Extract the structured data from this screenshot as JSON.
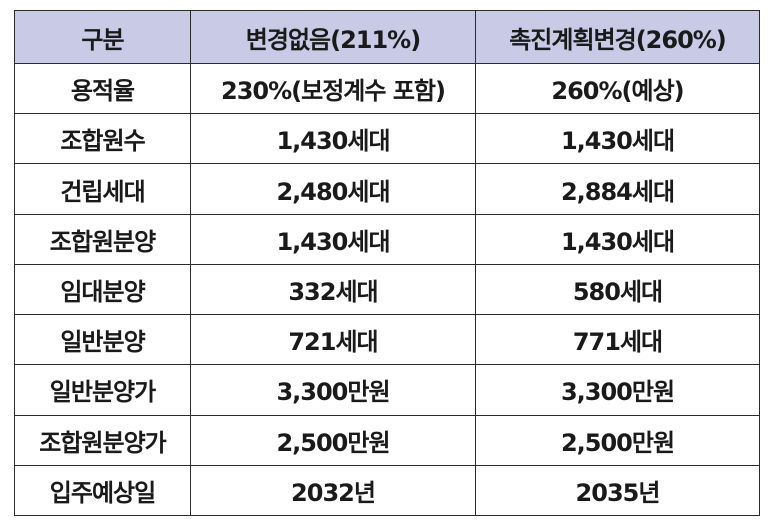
{
  "table": {
    "headers": [
      "구분",
      "변경없음(211%)",
      "촉진계획변경(260%)"
    ],
    "rows": [
      [
        "용적율",
        "230%(보정계수 포함)",
        "260%(예상)"
      ],
      [
        "조합원수",
        "1,430세대",
        "1,430세대"
      ],
      [
        "건립세대",
        "2,480세대",
        "2,884세대"
      ],
      [
        "조합원분양",
        "1,430세대",
        "1,430세대"
      ],
      [
        "임대분양",
        "332세대",
        "580세대"
      ],
      [
        "일반분양",
        "721세대",
        "771세대"
      ],
      [
        "일반분양가",
        "3,300만원",
        "3,300만원"
      ],
      [
        "조합원분양가",
        "2,500만원",
        "2,500만원"
      ],
      [
        "입주예상일",
        "2032년",
        "2035년"
      ]
    ]
  },
  "colors": {
    "header_bg": "#c9cbe6",
    "border": "#2b2b2b",
    "text": "#1a1a1a"
  }
}
